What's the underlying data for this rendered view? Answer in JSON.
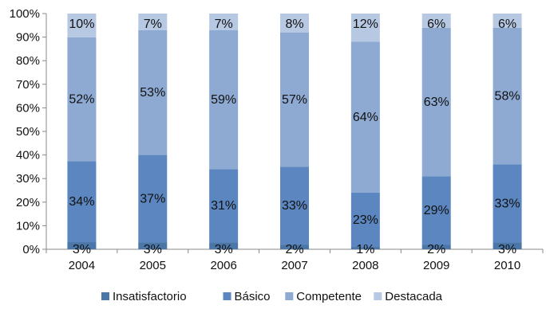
{
  "chart_data": {
    "type": "bar",
    "stacked": true,
    "percent_stacked": true,
    "categories": [
      "2004",
      "2005",
      "2006",
      "2007",
      "2008",
      "2009",
      "2010"
    ],
    "series": [
      {
        "name": "Insatisfactorio",
        "values": [
          3,
          3,
          3,
          2,
          1,
          2,
          3
        ],
        "color": "#4a76a8",
        "labels": [
          "3%",
          "3%",
          "3%",
          "2%",
          "1%",
          "2%",
          "3%"
        ]
      },
      {
        "name": "Básico",
        "values": [
          34,
          37,
          31,
          33,
          23,
          29,
          33
        ],
        "color": "#5b86bf",
        "labels": [
          "34%",
          "37%",
          "31%",
          "33%",
          "23%",
          "29%",
          "33%"
        ]
      },
      {
        "name": "Competente",
        "values": [
          52,
          53,
          59,
          57,
          64,
          63,
          58
        ],
        "color": "#8eaad3",
        "labels": [
          "52%",
          "53%",
          "59%",
          "57%",
          "64%",
          "63%",
          "58%"
        ]
      },
      {
        "name": "Destacada",
        "values": [
          10,
          7,
          7,
          8,
          12,
          6,
          6
        ],
        "color": "#b7c8e3",
        "labels": [
          "10%",
          "7%",
          "7%",
          "8%",
          "12%",
          "6%",
          "6%"
        ]
      }
    ],
    "y_ticks": [
      "0%",
      "10%",
      "20%",
      "30%",
      "40%",
      "50%",
      "60%",
      "70%",
      "80%",
      "90%",
      "100%"
    ],
    "ylim": [
      0,
      100
    ],
    "grid": false,
    "legend_position": "bottom"
  }
}
